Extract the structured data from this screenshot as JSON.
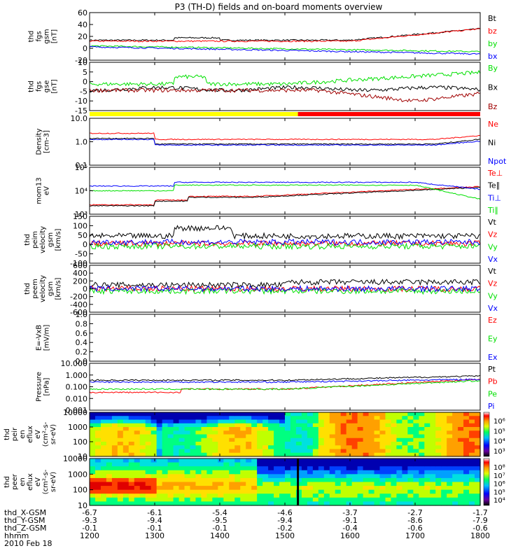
{
  "title": "P3 (TH-D) fields and on-board moments overview",
  "colors": {
    "black": "#000000",
    "red": "#ff0000",
    "green": "#00e000",
    "blue": "#0000ff",
    "yellow": "#ffff00",
    "darkred": "#a00000"
  },
  "chart_data": [
    {
      "id": "p1",
      "type": "line",
      "ylabel": [
        "thd",
        "fgs",
        "gsm",
        "[nT]"
      ],
      "yticks": [
        "60",
        "40",
        "20",
        "0",
        "-20"
      ],
      "ylim": [
        -20,
        60
      ],
      "legend": [
        {
          "label": "Bt",
          "color": "black"
        },
        {
          "label": "bz",
          "color": "red"
        },
        {
          "label": "by",
          "color": "green"
        },
        {
          "label": "bx",
          "color": "blue"
        }
      ]
    },
    {
      "id": "p2",
      "type": "line",
      "ylabel": [
        "thd",
        "fgs",
        "gse",
        "[nT]"
      ],
      "yticks": [
        "10",
        "5",
        "0",
        "-5",
        "-10",
        "-15"
      ],
      "ylim": [
        -17,
        12
      ],
      "legend": [
        {
          "label": "By",
          "color": "green"
        },
        {
          "label": "Bx",
          "color": "black"
        },
        {
          "label": "Bz",
          "color": "darkred"
        }
      ]
    },
    {
      "id": "bar",
      "type": "mode_bar",
      "segments": [
        {
          "from": 12.0,
          "to": 15.2,
          "color": "yellow"
        },
        {
          "from": 15.2,
          "to": 18.0,
          "color": "red"
        }
      ]
    },
    {
      "id": "p3",
      "type": "line",
      "log": true,
      "ylabel": [
        "Density",
        "[cm-3]"
      ],
      "yticks": [
        "10.0",
        "1.0",
        "0.1"
      ],
      "ylim": [
        0.1,
        10
      ],
      "legend": [
        {
          "label": "Ne",
          "color": "red"
        },
        {
          "label": "Ni",
          "color": "black"
        },
        {
          "label": "Npot",
          "color": "blue"
        }
      ]
    },
    {
      "id": "p4",
      "type": "line",
      "log": true,
      "ylabel": [
        "mom13",
        "eV"
      ],
      "yticks": [
        "10⁵",
        "10⁴",
        "10³"
      ],
      "ylim": [
        1000,
        100000
      ],
      "legend": [
        {
          "label": "Te⊥",
          "color": "red"
        },
        {
          "label": "Te∥",
          "color": "black"
        },
        {
          "label": "Ti⊥",
          "color": "blue"
        },
        {
          "label": "Ti∥",
          "color": "green"
        }
      ]
    },
    {
      "id": "p5",
      "type": "line",
      "ylabel": [
        "thd",
        "peim",
        "velocity",
        "gsm",
        "[km/s]"
      ],
      "yticks": [
        "150",
        "100",
        "50",
        "0",
        "-50",
        "-100"
      ],
      "ylim": [
        -100,
        160
      ],
      "legend": [
        {
          "label": "Vt",
          "color": "black"
        },
        {
          "label": "Vz",
          "color": "red"
        },
        {
          "label": "Vy",
          "color": "green"
        },
        {
          "label": "Vx",
          "color": "blue"
        }
      ]
    },
    {
      "id": "p6",
      "type": "line",
      "ylabel": [
        "thd",
        "peem",
        "velocity",
        "gsm",
        "[km/s]"
      ],
      "yticks": [
        "600",
        "400",
        "200",
        "0",
        "-200",
        "-400",
        "-600"
      ],
      "ylim": [
        -600,
        600
      ],
      "legend": [
        {
          "label": "Vt",
          "color": "black"
        },
        {
          "label": "Vz",
          "color": "red"
        },
        {
          "label": "Vy",
          "color": "green"
        },
        {
          "label": "Vx",
          "color": "blue"
        }
      ]
    },
    {
      "id": "p7",
      "type": "line",
      "ylabel": [
        "E=-VxB",
        "[mV/m]"
      ],
      "yticks": [
        "1.0",
        "0.8",
        "0.6",
        "0.4",
        "0.2",
        "0.0"
      ],
      "ylim": [
        0,
        1
      ],
      "legend": [
        {
          "label": "Ez",
          "color": "red"
        },
        {
          "label": "Ey",
          "color": "green"
        },
        {
          "label": "Ex",
          "color": "blue"
        }
      ]
    },
    {
      "id": "p8",
      "type": "line",
      "log": true,
      "ylabel": [
        "Pressure",
        "[nPa]"
      ],
      "yticks": [
        "10.000",
        "1.000",
        "0.100",
        "0.010",
        "0.001"
      ],
      "ylim": [
        0.001,
        10
      ],
      "legend": [
        {
          "label": "Pt",
          "color": "black"
        },
        {
          "label": "Pb",
          "color": "red"
        },
        {
          "label": "Pe",
          "color": "green"
        },
        {
          "label": "Pi",
          "color": "blue"
        }
      ]
    },
    {
      "id": "p9",
      "type": "heatmap",
      "ylabel": [
        "thd",
        "peir",
        "en",
        "eflux",
        "eV",
        "(cm²-s-",
        "sr-eV)"
      ],
      "yticks": [
        "10000",
        "1000",
        "100",
        "10"
      ],
      "colorbar": [
        "10⁶",
        "10⁵",
        "10⁴",
        "10³"
      ]
    },
    {
      "id": "p10",
      "type": "heatmap",
      "ylabel": [
        "thd",
        "peer",
        "en",
        "eflux",
        "eV",
        "(cm²-s-",
        "sr-eV)"
      ],
      "yticks": [
        "10000",
        "1000",
        "100",
        "10"
      ],
      "colorbar": [
        "10⁸",
        "10⁷",
        "10⁶",
        "10⁵",
        "10⁴"
      ]
    }
  ],
  "xaxis": {
    "rows": [
      {
        "label": "thd_X-GSM",
        "values": [
          "-6.7",
          "-6.1",
          "-5.4",
          "-4.6",
          "-3.7",
          "-2.7",
          "-1.7"
        ]
      },
      {
        "label": "thd_Y-GSM",
        "values": [
          "-9.3",
          "-9.4",
          "-9.5",
          "-9.4",
          "-9.1",
          "-8.6",
          "-7.9"
        ]
      },
      {
        "label": "thd_Z-GSM",
        "values": [
          "-0.1",
          "-0.1",
          "-0.1",
          "-0.2",
          "-0.4",
          "-0.6",
          "-0.6"
        ]
      },
      {
        "label": "hhmm",
        "values": [
          "1200",
          "1300",
          "1400",
          "1500",
          "1600",
          "1700",
          "1800"
        ]
      }
    ],
    "date": "2010 Feb 18"
  }
}
